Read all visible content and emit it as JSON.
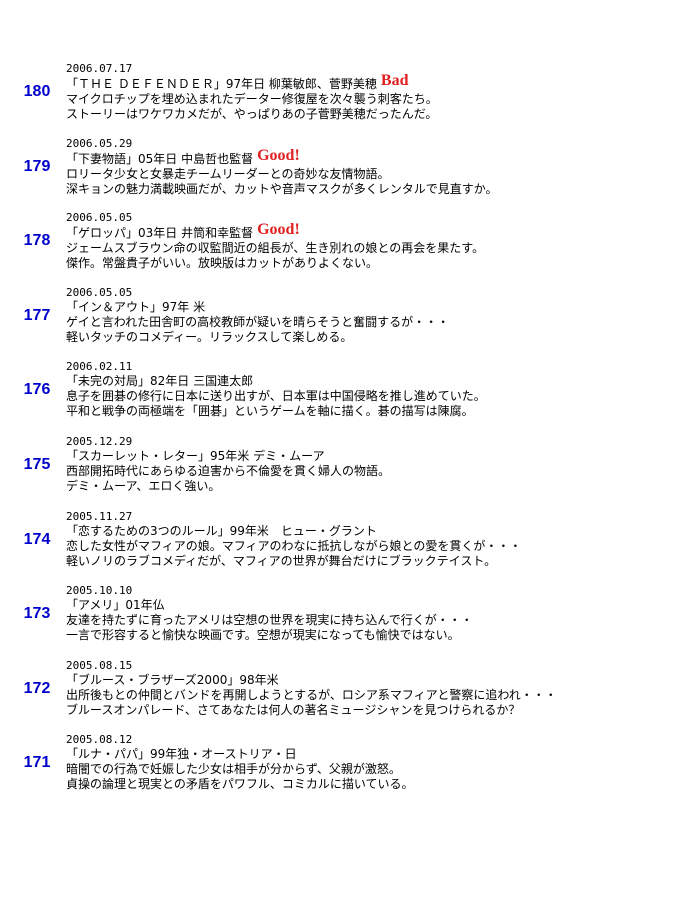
{
  "entries": [
    {
      "number": "180",
      "date": "2006.07.17",
      "title": "「ＴＨＥ ＤＥＦＥＮＤＥＲ」97年日 柳葉敏郎、菅野美穂",
      "badge": "Bad",
      "lines": [
        "マイクロチップを埋め込まれたデーター修復屋を次々襲う刺客たち。",
        "ストーリーはワケワカメだが、やっぱりあの子菅野美穂だったんだ。"
      ]
    },
    {
      "number": "179",
      "date": "2006.05.29",
      "title": "「下妻物語」05年日 中島哲也監督",
      "badge": "Good!",
      "lines": [
        "ロリータ少女と女暴走チームリーダーとの奇妙な友情物語。",
        "深キョンの魅力満載映画だが、カットや音声マスクが多くレンタルで見直すか。"
      ]
    },
    {
      "number": "178",
      "date": "2006.05.05",
      "title": "「ゲロッパ」03年日 井筒和幸監督",
      "badge": "Good!",
      "lines": [
        "ジェームスブラウン命の収監間近の組長が、生き別れの娘との再会を果たす。",
        "傑作。常盤貴子がいい。放映版はカットがありよくない。"
      ]
    },
    {
      "number": "177",
      "date": "2006.05.05",
      "title": "「イン＆アウト」97年 米",
      "lines": [
        "ゲイと言われた田舎町の高校教師が疑いを晴らそうと奮闘するが・・・",
        "軽いタッチのコメディー。リラックスして楽しめる。"
      ]
    },
    {
      "number": "176",
      "date": "2006.02.11",
      "title": "「未完の対局」82年日 三国連太郎",
      "lines": [
        "息子を囲碁の修行に日本に送り出すが、日本軍は中国侵略を推し進めていた。",
        "平和と戦争の両極端を「囲碁」というゲームを軸に描く。碁の描写は陳腐。"
      ]
    },
    {
      "number": "175",
      "date": "2005.12.29",
      "title": "「スカーレット・レター」95年米 デミ・ムーア",
      "lines": [
        "西部開拓時代にあらゆる迫害から不倫愛を貫く婦人の物語。",
        "デミ・ムーア、エロく強い。"
      ]
    },
    {
      "number": "174",
      "date": "2005.11.27",
      "title": "「恋するための3つのルール」99年米　ヒュー・グラント",
      "lines": [
        "恋した女性がマフィアの娘。マフィアのわなに抵抗しながら娘との愛を貫くが・・・",
        "軽いノリのラブコメディだが、マフィアの世界が舞台だけにブラックテイスト。"
      ]
    },
    {
      "number": "173",
      "date": "2005.10.10",
      "title": "「アメリ」01年仏",
      "lines": [
        "友達を持たずに育ったアメリは空想の世界を現実に持ち込んで行くが・・・",
        "一言で形容すると愉快な映画です。空想が現実になっても愉快ではない。"
      ]
    },
    {
      "number": "172",
      "date": "2005.08.15",
      "title": "「ブルース・ブラザーズ2000」98年米",
      "lines": [
        "出所後もとの仲間とバンドを再開しようとするが、ロシア系マフィアと警察に追われ・・・",
        "ブルースオンパレード、さてあなたは何人の著名ミュージシャンを見つけられるか？"
      ]
    },
    {
      "number": "171",
      "date": "2005.08.12",
      "title": "「ルナ・パパ」99年独・オーストリア・日",
      "lines": [
        "暗闇での行為で妊娠した少女は相手が分からず、父親が激怒。",
        "貞操の論理と現実との矛盾をパワフル、コミカルに描いている。"
      ]
    }
  ]
}
